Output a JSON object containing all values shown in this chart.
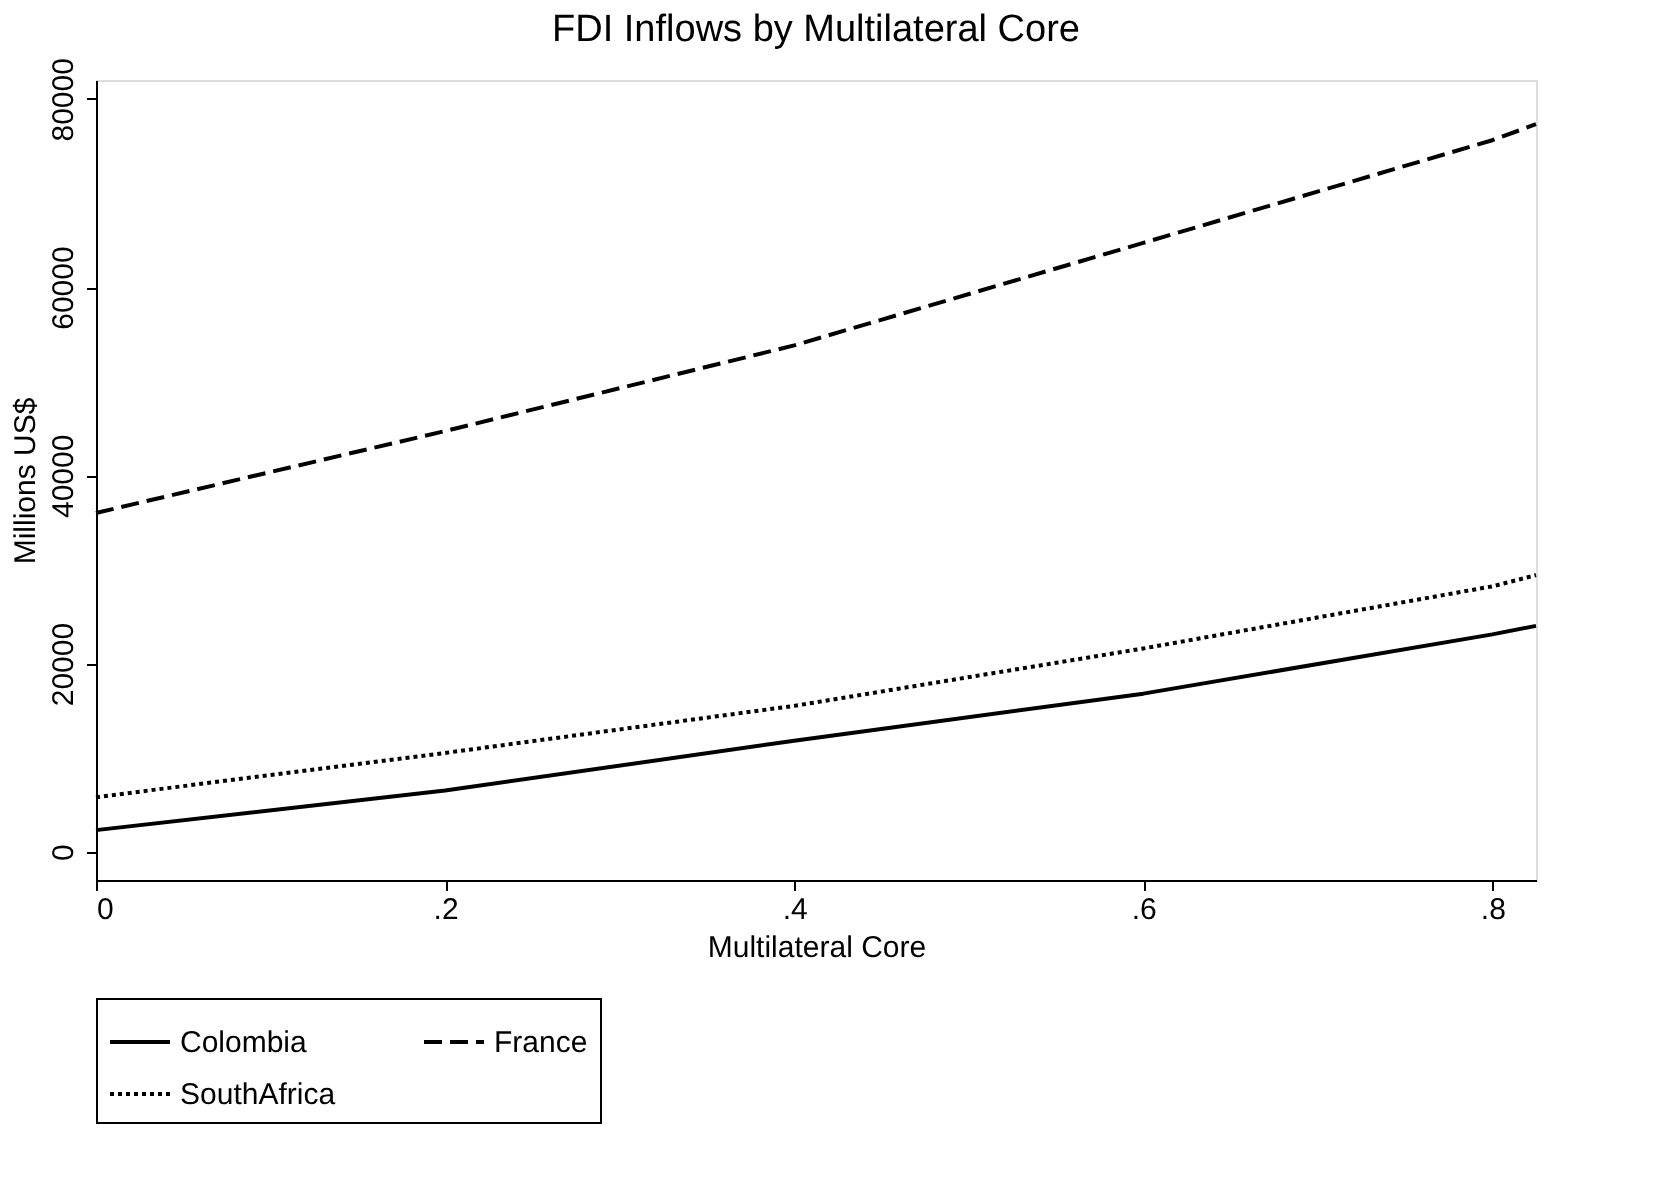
{
  "chart_data": {
    "type": "line",
    "title": "FDI Inflows by Multilateral Core",
    "xlabel": "Multilateral Core",
    "ylabel": "Millions US$",
    "x": [
      0,
      0.2,
      0.4,
      0.6,
      0.8,
      0.825
    ],
    "series": [
      {
        "name": "Colombia",
        "color": "#000000",
        "line_style": "solid",
        "values": [
          2300,
          6500,
          11800,
          16800,
          23100,
          24000
        ]
      },
      {
        "name": "France",
        "color": "#000000",
        "line_style": "dashed",
        "values": [
          36000,
          44700,
          53800,
          64700,
          75600,
          77300
        ]
      },
      {
        "name": "SouthAfrica",
        "color": "#000000",
        "line_style": "dotted",
        "values": [
          5800,
          10500,
          15500,
          21600,
          28200,
          29400
        ]
      }
    ],
    "xlim": [
      0,
      0.825
    ],
    "xticks": [
      0,
      {
        "value": 0.2,
        "label": ".2"
      },
      {
        "value": 0.4,
        "label": ".4"
      },
      {
        "value": 0.6,
        "label": ".6"
      },
      {
        "value": 0.8,
        "label": ".8"
      }
    ],
    "ylim": [
      -3000,
      82000
    ],
    "yticks": [
      0,
      20000,
      40000,
      60000,
      80000
    ],
    "grid": false,
    "legend": "bottom",
    "marker": "none"
  }
}
